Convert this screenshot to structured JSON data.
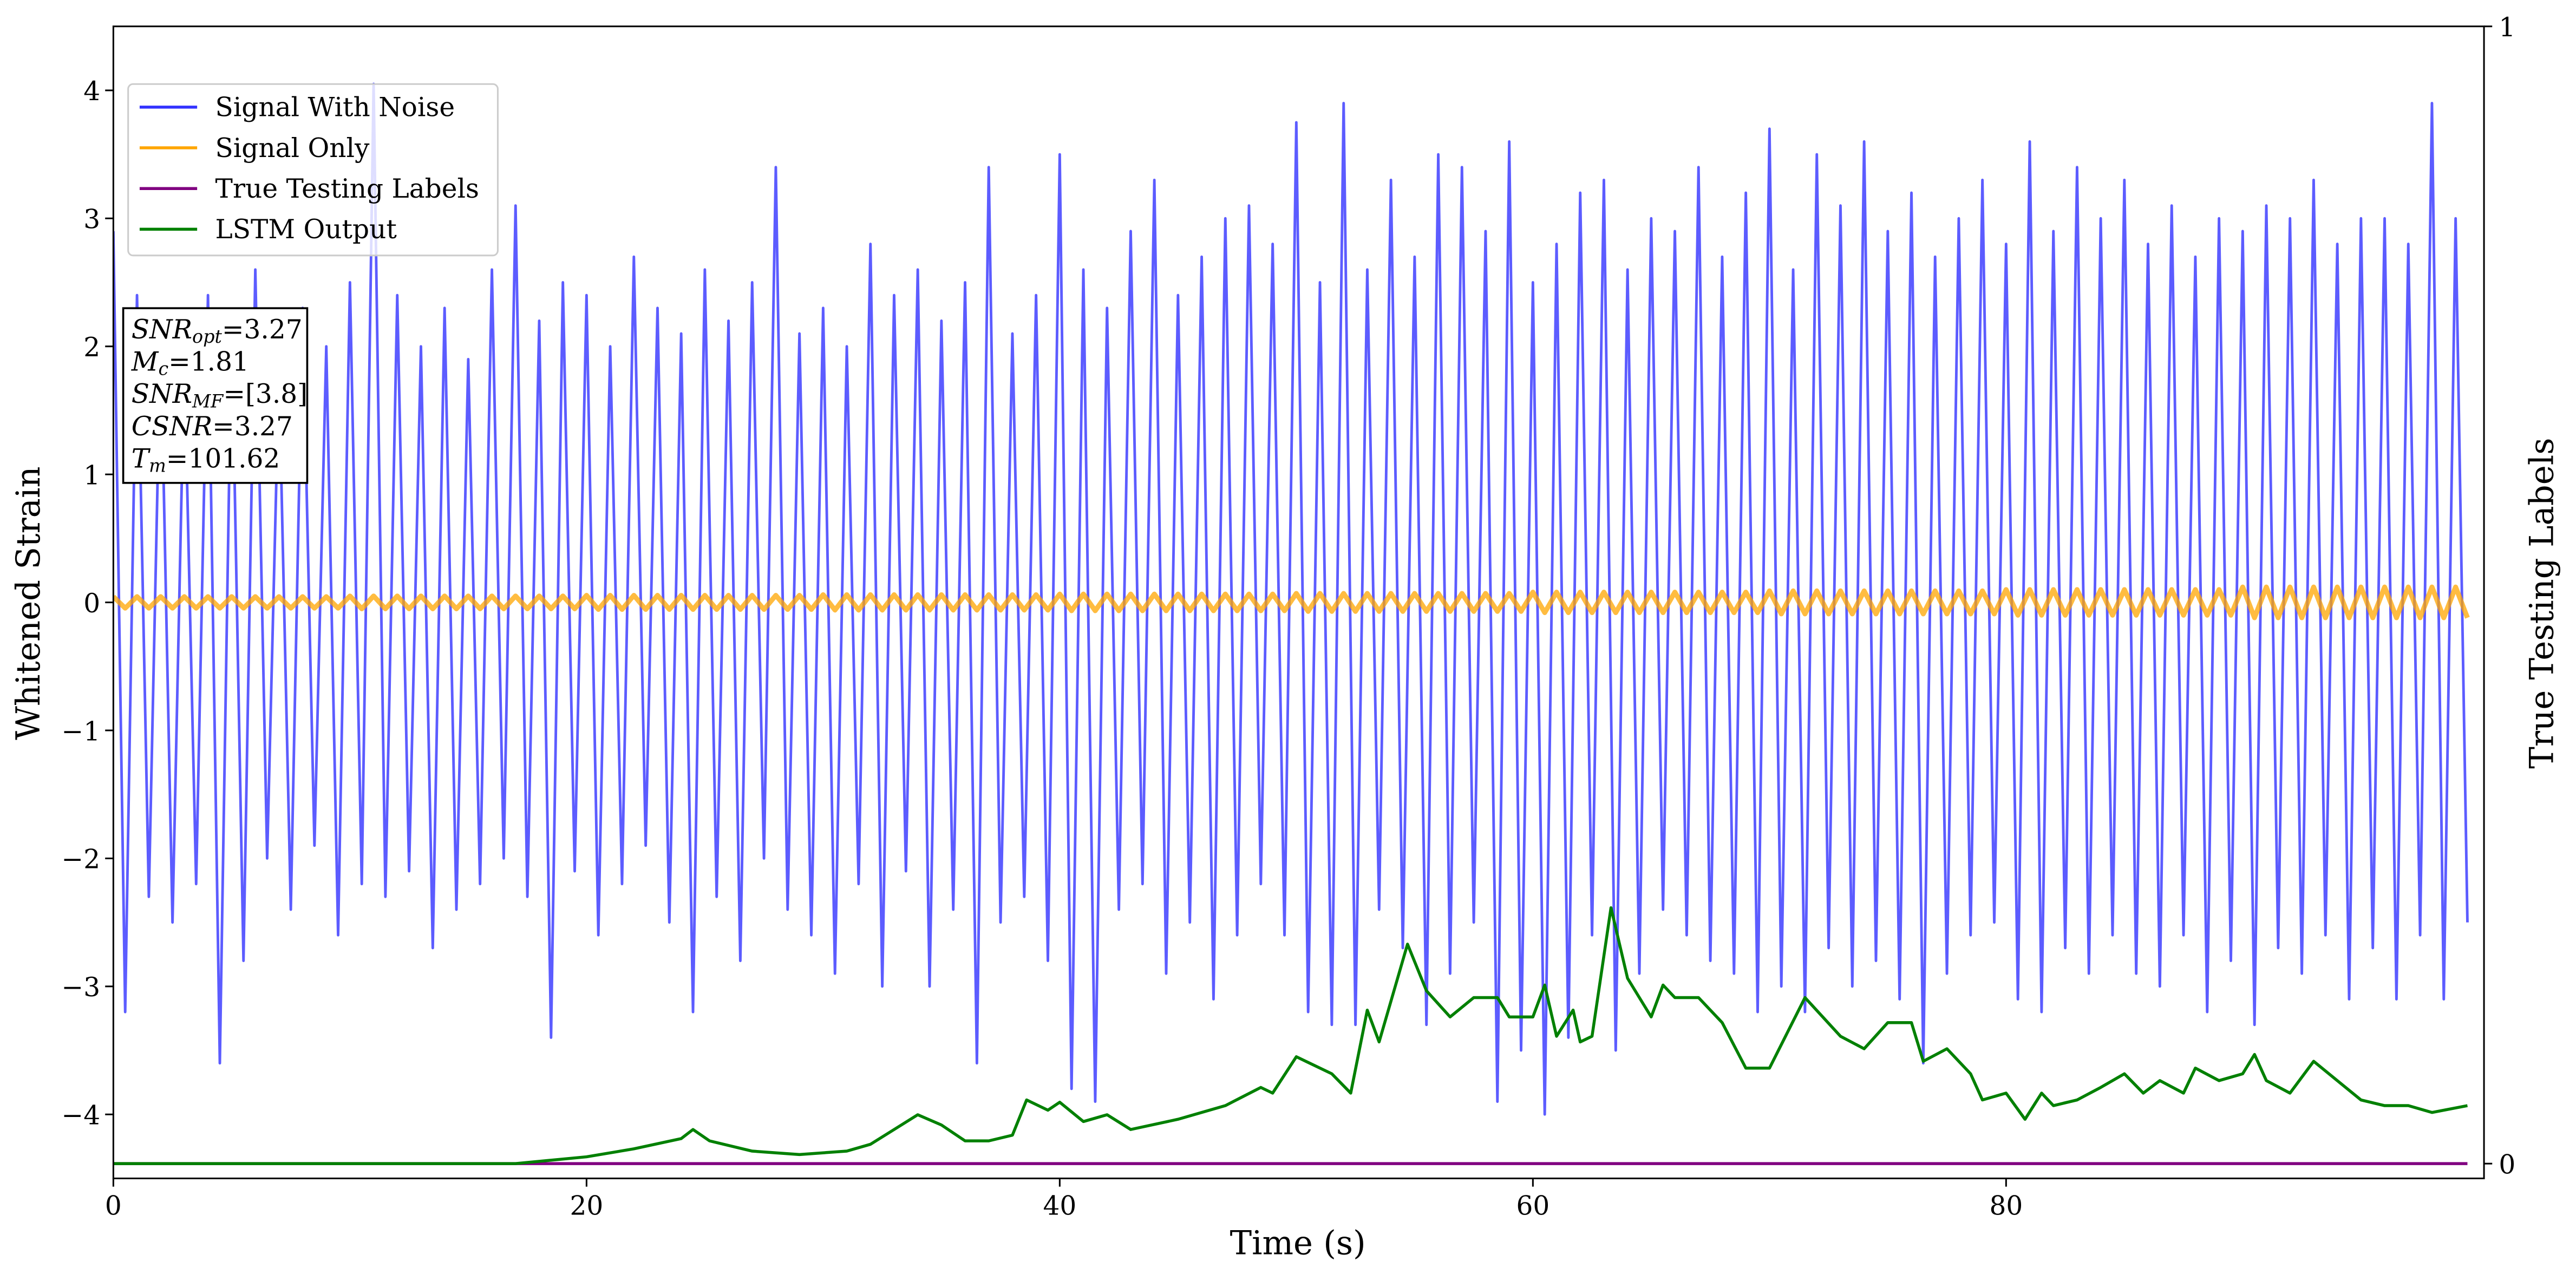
{
  "chart_data": {
    "type": "line",
    "xlabel": "Time (s)",
    "ylabel": "Whitened Strain",
    "y2label": "True Testing Labels",
    "xlim": [
      0,
      100.2
    ],
    "xticks": [
      0,
      20,
      40,
      60,
      80
    ],
    "ylim": [
      -4.5,
      4.5
    ],
    "yticks": [
      -4,
      -3,
      -2,
      -1,
      0,
      1,
      2,
      3,
      4
    ],
    "y2lim": [
      -0.013,
      1
    ],
    "y2ticks": [
      0,
      1
    ],
    "legend": "upper left",
    "annotations": [
      {
        "symbol": "SNR",
        "subscript": "opt",
        "text": "=3.27"
      },
      {
        "symbol": "M",
        "subscript": "c",
        "text": "=1.81"
      },
      {
        "symbol": "SNR",
        "subscript": "MF",
        "text": "=[3.8]"
      },
      {
        "symbol": "CSNR",
        "subscript": null,
        "text": "=3.27"
      },
      {
        "symbol": "T",
        "subscript": "m",
        "text": "=101.62"
      }
    ],
    "x": [
      0,
      0.5,
      1,
      1.5,
      2,
      2.5,
      3,
      3.5,
      4,
      4.5,
      5,
      5.5,
      6,
      6.5,
      7,
      7.5,
      8,
      8.5,
      9,
      9.5,
      10,
      10.5,
      11,
      11.5,
      12,
      12.5,
      13,
      13.5,
      14,
      14.5,
      15,
      15.5,
      16,
      16.5,
      17,
      17.5,
      18,
      18.5,
      19,
      19.5,
      20,
      20.5,
      21,
      21.5,
      22,
      22.5,
      23,
      23.5,
      24,
      24.5,
      25,
      25.5,
      26,
      26.5,
      27,
      27.5,
      28,
      28.5,
      29,
      29.5,
      30,
      30.5,
      31,
      31.5,
      32,
      32.5,
      33,
      33.5,
      34,
      34.5,
      35,
      35.5,
      36,
      36.5,
      37,
      37.5,
      38,
      38.5,
      39,
      39.5,
      40,
      40.5,
      41,
      41.5,
      42,
      42.5,
      43,
      43.5,
      44,
      44.5,
      45,
      45.5,
      46,
      46.5,
      47,
      47.5,
      48,
      48.5,
      49,
      49.5,
      50,
      50.5,
      51,
      51.5,
      52,
      52.5,
      53,
      53.5,
      54,
      54.5,
      55,
      55.5,
      56,
      56.5,
      57,
      57.5,
      58,
      58.5,
      59,
      59.5,
      60,
      60.5,
      61,
      61.5,
      62,
      62.5,
      63,
      63.5,
      64,
      64.5,
      65,
      65.5,
      66,
      66.5,
      67,
      67.5,
      68,
      68.5,
      69,
      69.5,
      70,
      70.5,
      71,
      71.5,
      72,
      72.5,
      73,
      73.5,
      74,
      74.5,
      75,
      75.5,
      76,
      76.5,
      77,
      77.5,
      78,
      78.5,
      79,
      79.5,
      80,
      80.5,
      81,
      81.5,
      82,
      82.5,
      83,
      83.5,
      84,
      84.5,
      85,
      85.5,
      86,
      86.5,
      87,
      87.5,
      88,
      88.5,
      89,
      89.5,
      90,
      90.5,
      91,
      91.5,
      92,
      92.5,
      93,
      93.5,
      94,
      94.5,
      95,
      95.5,
      96,
      96.5,
      97,
      97.5,
      98,
      98.5,
      99,
      99.5
    ],
    "series": [
      {
        "name": "Signal With Noise",
        "color": "#3333ff",
        "values": [
          2.9,
          -3.2,
          2.4,
          -2.3,
          2.1,
          -2.5,
          1.9,
          -2.2,
          2.4,
          -3.6,
          2.2,
          -2.8,
          2.6,
          -2.0,
          1.8,
          -2.4,
          2.3,
          -1.9,
          2.0,
          -2.6,
          2.5,
          -2.2,
          4.05,
          -2.3,
          2.4,
          -2.1,
          2.0,
          -2.7,
          2.3,
          -2.4,
          1.9,
          -2.2,
          2.6,
          -2.0,
          3.1,
          -2.3,
          2.2,
          -3.4,
          2.5,
          -2.1,
          2.4,
          -2.6,
          2.0,
          -2.2,
          2.7,
          -1.9,
          2.3,
          -2.5,
          2.1,
          -3.2,
          2.6,
          -2.3,
          2.2,
          -2.8,
          2.5,
          -2.0,
          3.4,
          -2.4,
          2.1,
          -2.6,
          2.3,
          -2.9,
          2.0,
          -2.2,
          2.8,
          -3.0,
          2.4,
          -2.1,
          2.6,
          -3.0,
          2.2,
          -2.4,
          2.5,
          -3.6,
          3.4,
          -2.5,
          2.1,
          -2.3,
          2.4,
          -2.8,
          3.5,
          -3.8,
          2.6,
          -3.9,
          2.3,
          -2.4,
          2.9,
          -2.2,
          3.3,
          -2.9,
          2.4,
          -2.5,
          2.7,
          -3.1,
          3.0,
          -2.6,
          3.1,
          -2.2,
          2.8,
          -2.6,
          3.75,
          -3.2,
          2.5,
          -3.3,
          3.9,
          -3.3,
          2.6,
          -2.4,
          3.3,
          -2.7,
          2.7,
          -3.3,
          3.5,
          -2.9,
          3.4,
          -2.5,
          2.9,
          -3.9,
          3.6,
          -3.5,
          2.5,
          -4.0,
          2.8,
          -3.4,
          3.2,
          -2.6,
          3.3,
          -3.5,
          2.6,
          -2.9,
          3.0,
          -2.4,
          2.9,
          -2.6,
          3.4,
          -2.8,
          2.7,
          -2.9,
          3.2,
          -3.2,
          3.7,
          -3.0,
          2.6,
          -3.2,
          3.5,
          -2.7,
          3.1,
          -3.0,
          3.6,
          -2.8,
          2.9,
          -3.1,
          3.2,
          -3.6,
          2.7,
          -2.9,
          3.0,
          -2.6,
          3.3,
          -2.5,
          2.8,
          -3.1,
          3.6,
          -3.2,
          2.9,
          -2.7,
          3.4,
          -2.9,
          3.0,
          -2.6,
          3.3,
          -2.9,
          2.8,
          -3.0,
          3.1,
          -2.6,
          2.7,
          -3.2,
          3.0,
          -2.8,
          2.9,
          -3.3,
          3.1,
          -2.7,
          3.0,
          -2.9,
          3.3,
          -2.6,
          2.8,
          -3.1,
          3.0,
          -2.7,
          3.0,
          -3.1,
          2.8,
          -2.6,
          3.9,
          -3.1,
          3.0,
          -2.5
        ]
      },
      {
        "name": "Signal Only",
        "color": "#ffa500",
        "values": [
          0.045,
          -0.045,
          0.045,
          -0.045,
          0.045,
          -0.045,
          0.045,
          -0.045,
          0.045,
          -0.045,
          0.045,
          -0.045,
          0.045,
          -0.045,
          0.045,
          -0.045,
          0.045,
          -0.045,
          0.045,
          -0.045,
          0.05,
          -0.05,
          0.05,
          -0.05,
          0.05,
          -0.05,
          0.05,
          -0.05,
          0.05,
          -0.05,
          0.05,
          -0.05,
          0.05,
          -0.05,
          0.05,
          -0.05,
          0.05,
          -0.05,
          0.05,
          -0.05,
          0.055,
          -0.055,
          0.055,
          -0.055,
          0.055,
          -0.055,
          0.055,
          -0.055,
          0.055,
          -0.055,
          0.055,
          -0.055,
          0.055,
          -0.055,
          0.055,
          -0.055,
          0.055,
          -0.055,
          0.055,
          -0.055,
          0.06,
          -0.06,
          0.06,
          -0.06,
          0.06,
          -0.06,
          0.06,
          -0.06,
          0.06,
          -0.06,
          0.06,
          -0.06,
          0.06,
          -0.06,
          0.06,
          -0.06,
          0.06,
          -0.06,
          0.06,
          -0.06,
          0.065,
          -0.065,
          0.065,
          -0.065,
          0.065,
          -0.065,
          0.065,
          -0.065,
          0.065,
          -0.065,
          0.065,
          -0.065,
          0.065,
          -0.065,
          0.065,
          -0.065,
          0.065,
          -0.065,
          0.065,
          -0.065,
          0.07,
          -0.07,
          0.07,
          -0.07,
          0.07,
          -0.07,
          0.07,
          -0.07,
          0.07,
          -0.07,
          0.07,
          -0.07,
          0.07,
          -0.07,
          0.07,
          -0.07,
          0.07,
          -0.07,
          0.07,
          -0.07,
          0.08,
          -0.08,
          0.08,
          -0.08,
          0.08,
          -0.08,
          0.08,
          -0.08,
          0.08,
          -0.08,
          0.08,
          -0.08,
          0.08,
          -0.08,
          0.08,
          -0.08,
          0.08,
          -0.08,
          0.08,
          -0.08,
          0.09,
          -0.09,
          0.09,
          -0.09,
          0.09,
          -0.09,
          0.09,
          -0.09,
          0.09,
          -0.09,
          0.09,
          -0.09,
          0.09,
          -0.09,
          0.09,
          -0.09,
          0.09,
          -0.09,
          0.09,
          -0.09,
          0.1,
          -0.1,
          0.1,
          -0.1,
          0.1,
          -0.1,
          0.1,
          -0.1,
          0.1,
          -0.1,
          0.1,
          -0.1,
          0.1,
          -0.1,
          0.1,
          -0.1,
          0.1,
          -0.1,
          0.1,
          -0.1,
          0.12,
          -0.12,
          0.12,
          -0.12,
          0.12,
          -0.12,
          0.12,
          -0.12,
          0.12,
          -0.12,
          0.12,
          -0.12,
          0.12,
          -0.12,
          0.12,
          -0.12,
          0.12,
          -0.12,
          0.12,
          -0.12
        ]
      },
      {
        "name": "True Testing Labels",
        "color": "#800080",
        "axis": "y2",
        "x": [
          0,
          99.5
        ],
        "values": [
          0,
          0
        ]
      },
      {
        "name": "LSTM Output",
        "color": "#008000",
        "axis": "y2",
        "x": [
          0,
          17,
          20,
          22,
          24,
          24.5,
          25.2,
          27,
          29,
          31,
          32,
          34,
          35,
          36,
          37,
          38,
          38.6,
          39.5,
          40,
          41,
          42,
          43,
          45,
          47,
          48.5,
          49,
          50,
          51.5,
          52.3,
          53,
          53.5,
          54.7,
          55.5,
          56.5,
          57.5,
          58.5,
          59,
          60,
          60.5,
          61,
          61.7,
          62,
          62.5,
          63.3,
          64,
          65,
          65.5,
          66,
          67,
          68,
          69,
          70,
          71.5,
          73,
          74,
          75,
          76,
          76.5,
          77.5,
          78.5,
          79,
          80,
          80.8,
          81.5,
          82,
          83,
          84,
          85,
          85.8,
          86.5,
          87.5,
          88,
          89,
          90,
          90.5,
          91,
          92,
          93,
          94,
          95,
          96,
          97,
          98,
          99.5
        ],
        "values": [
          0,
          0,
          0.006,
          0.013,
          0.022,
          0.03,
          0.02,
          0.011,
          0.008,
          0.011,
          0.017,
          0.043,
          0.034,
          0.02,
          0.02,
          0.025,
          0.056,
          0.047,
          0.054,
          0.037,
          0.043,
          0.03,
          0.039,
          0.051,
          0.067,
          0.062,
          0.094,
          0.079,
          0.062,
          0.135,
          0.107,
          0.193,
          0.152,
          0.129,
          0.146,
          0.146,
          0.129,
          0.129,
          0.157,
          0.112,
          0.135,
          0.107,
          0.112,
          0.225,
          0.163,
          0.129,
          0.157,
          0.146,
          0.146,
          0.124,
          0.084,
          0.084,
          0.146,
          0.112,
          0.101,
          0.124,
          0.124,
          0.09,
          0.101,
          0.079,
          0.056,
          0.062,
          0.039,
          0.062,
          0.051,
          0.056,
          0.067,
          0.079,
          0.062,
          0.073,
          0.062,
          0.084,
          0.073,
          0.079,
          0.096,
          0.073,
          0.062,
          0.09,
          0.073,
          0.056,
          0.051,
          0.051,
          0.045,
          0.051
        ]
      }
    ]
  }
}
